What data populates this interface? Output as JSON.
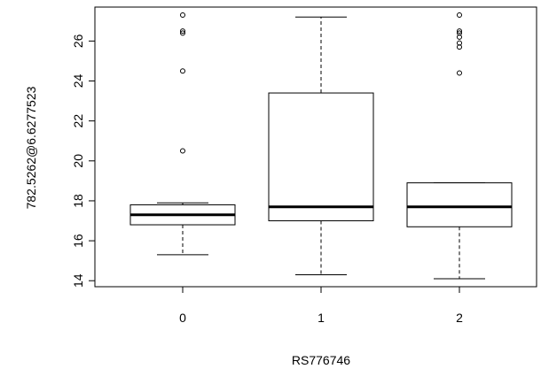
{
  "chart_data": {
    "type": "boxplot",
    "xlabel": "RS776746",
    "ylabel": "782.5262@6.6277523",
    "categories": [
      "0",
      "1",
      "2"
    ],
    "ylim": [
      13.7,
      27.7
    ],
    "yticks": [
      14,
      16,
      18,
      20,
      22,
      24,
      26
    ],
    "boxes": [
      {
        "category": "0",
        "whisker_low": 15.3,
        "q1": 16.8,
        "median": 17.3,
        "q3": 17.8,
        "whisker_high": 17.9,
        "outliers": [
          20.5,
          24.5,
          26.4,
          26.5,
          27.3
        ]
      },
      {
        "category": "1",
        "whisker_low": 14.3,
        "q1": 17.0,
        "median": 17.7,
        "q3": 23.4,
        "whisker_high": 27.2,
        "outliers": []
      },
      {
        "category": "2",
        "whisker_low": 14.1,
        "q1": 16.7,
        "median": 17.7,
        "q3": 18.9,
        "whisker_high": 18.9,
        "outliers": [
          24.4,
          25.7,
          25.9,
          26.2,
          26.4,
          26.5,
          27.3
        ]
      }
    ]
  }
}
